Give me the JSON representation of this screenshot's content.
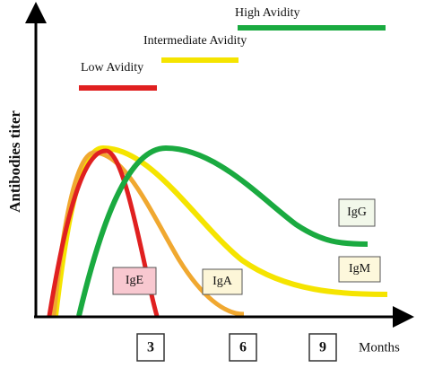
{
  "axis": {
    "y_title": "Antibodies titer",
    "x_title": "Months",
    "ticks": [
      "3",
      "6",
      "9"
    ]
  },
  "avidity": {
    "low": "Low Avidity",
    "intermediate": "Intermediate Avidity",
    "high": "High Avidity"
  },
  "antibodies": {
    "ige": "IgE",
    "iga": "IgA",
    "igg": "IgG",
    "igm": "IgM"
  }
}
